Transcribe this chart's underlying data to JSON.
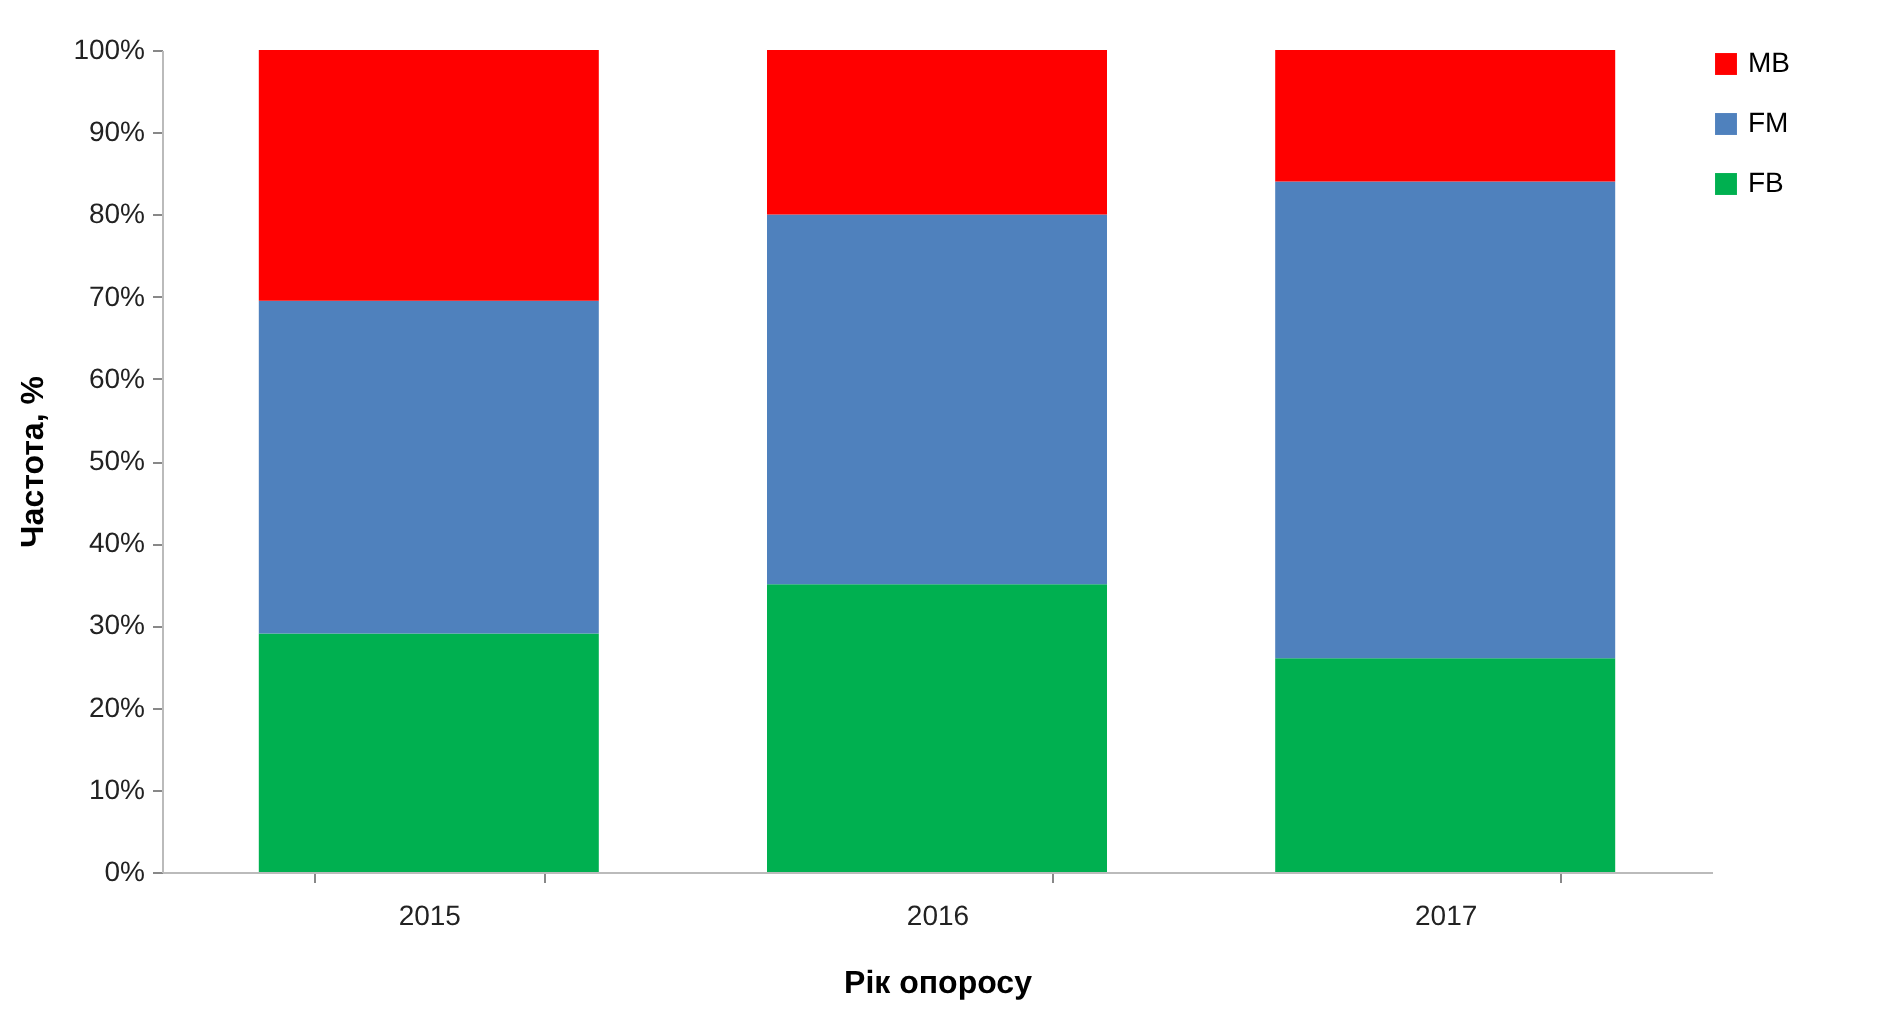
{
  "chart_data": {
    "type": "bar",
    "stacked": true,
    "xlabel": "Рік опоросу",
    "ylabel": "Частота, %",
    "categories": [
      "2015",
      "2016",
      "2017"
    ],
    "series": [
      {
        "name": "FB",
        "color": "#00b050",
        "values": [
          29,
          35,
          26
        ]
      },
      {
        "name": "FM",
        "color": "#4f81bd",
        "values": [
          40.5,
          45,
          58
        ]
      },
      {
        "name": "MB",
        "color": "#ff0000",
        "values": [
          30.5,
          20,
          16
        ]
      }
    ],
    "ylim": [
      0,
      100
    ],
    "yticks": [
      {
        "value": 0,
        "label": "0%"
      },
      {
        "value": 10,
        "label": "10%"
      },
      {
        "value": 20,
        "label": "20%"
      },
      {
        "value": 30,
        "label": "30%"
      },
      {
        "value": 40,
        "label": "40%"
      },
      {
        "value": 50,
        "label": "50%"
      },
      {
        "value": 60,
        "label": "60%"
      },
      {
        "value": 70,
        "label": "70%"
      },
      {
        "value": 80,
        "label": "80%"
      },
      {
        "value": 90,
        "label": "90%"
      },
      {
        "value": 100,
        "label": "100%"
      }
    ],
    "grid": false,
    "legend": "top right"
  }
}
